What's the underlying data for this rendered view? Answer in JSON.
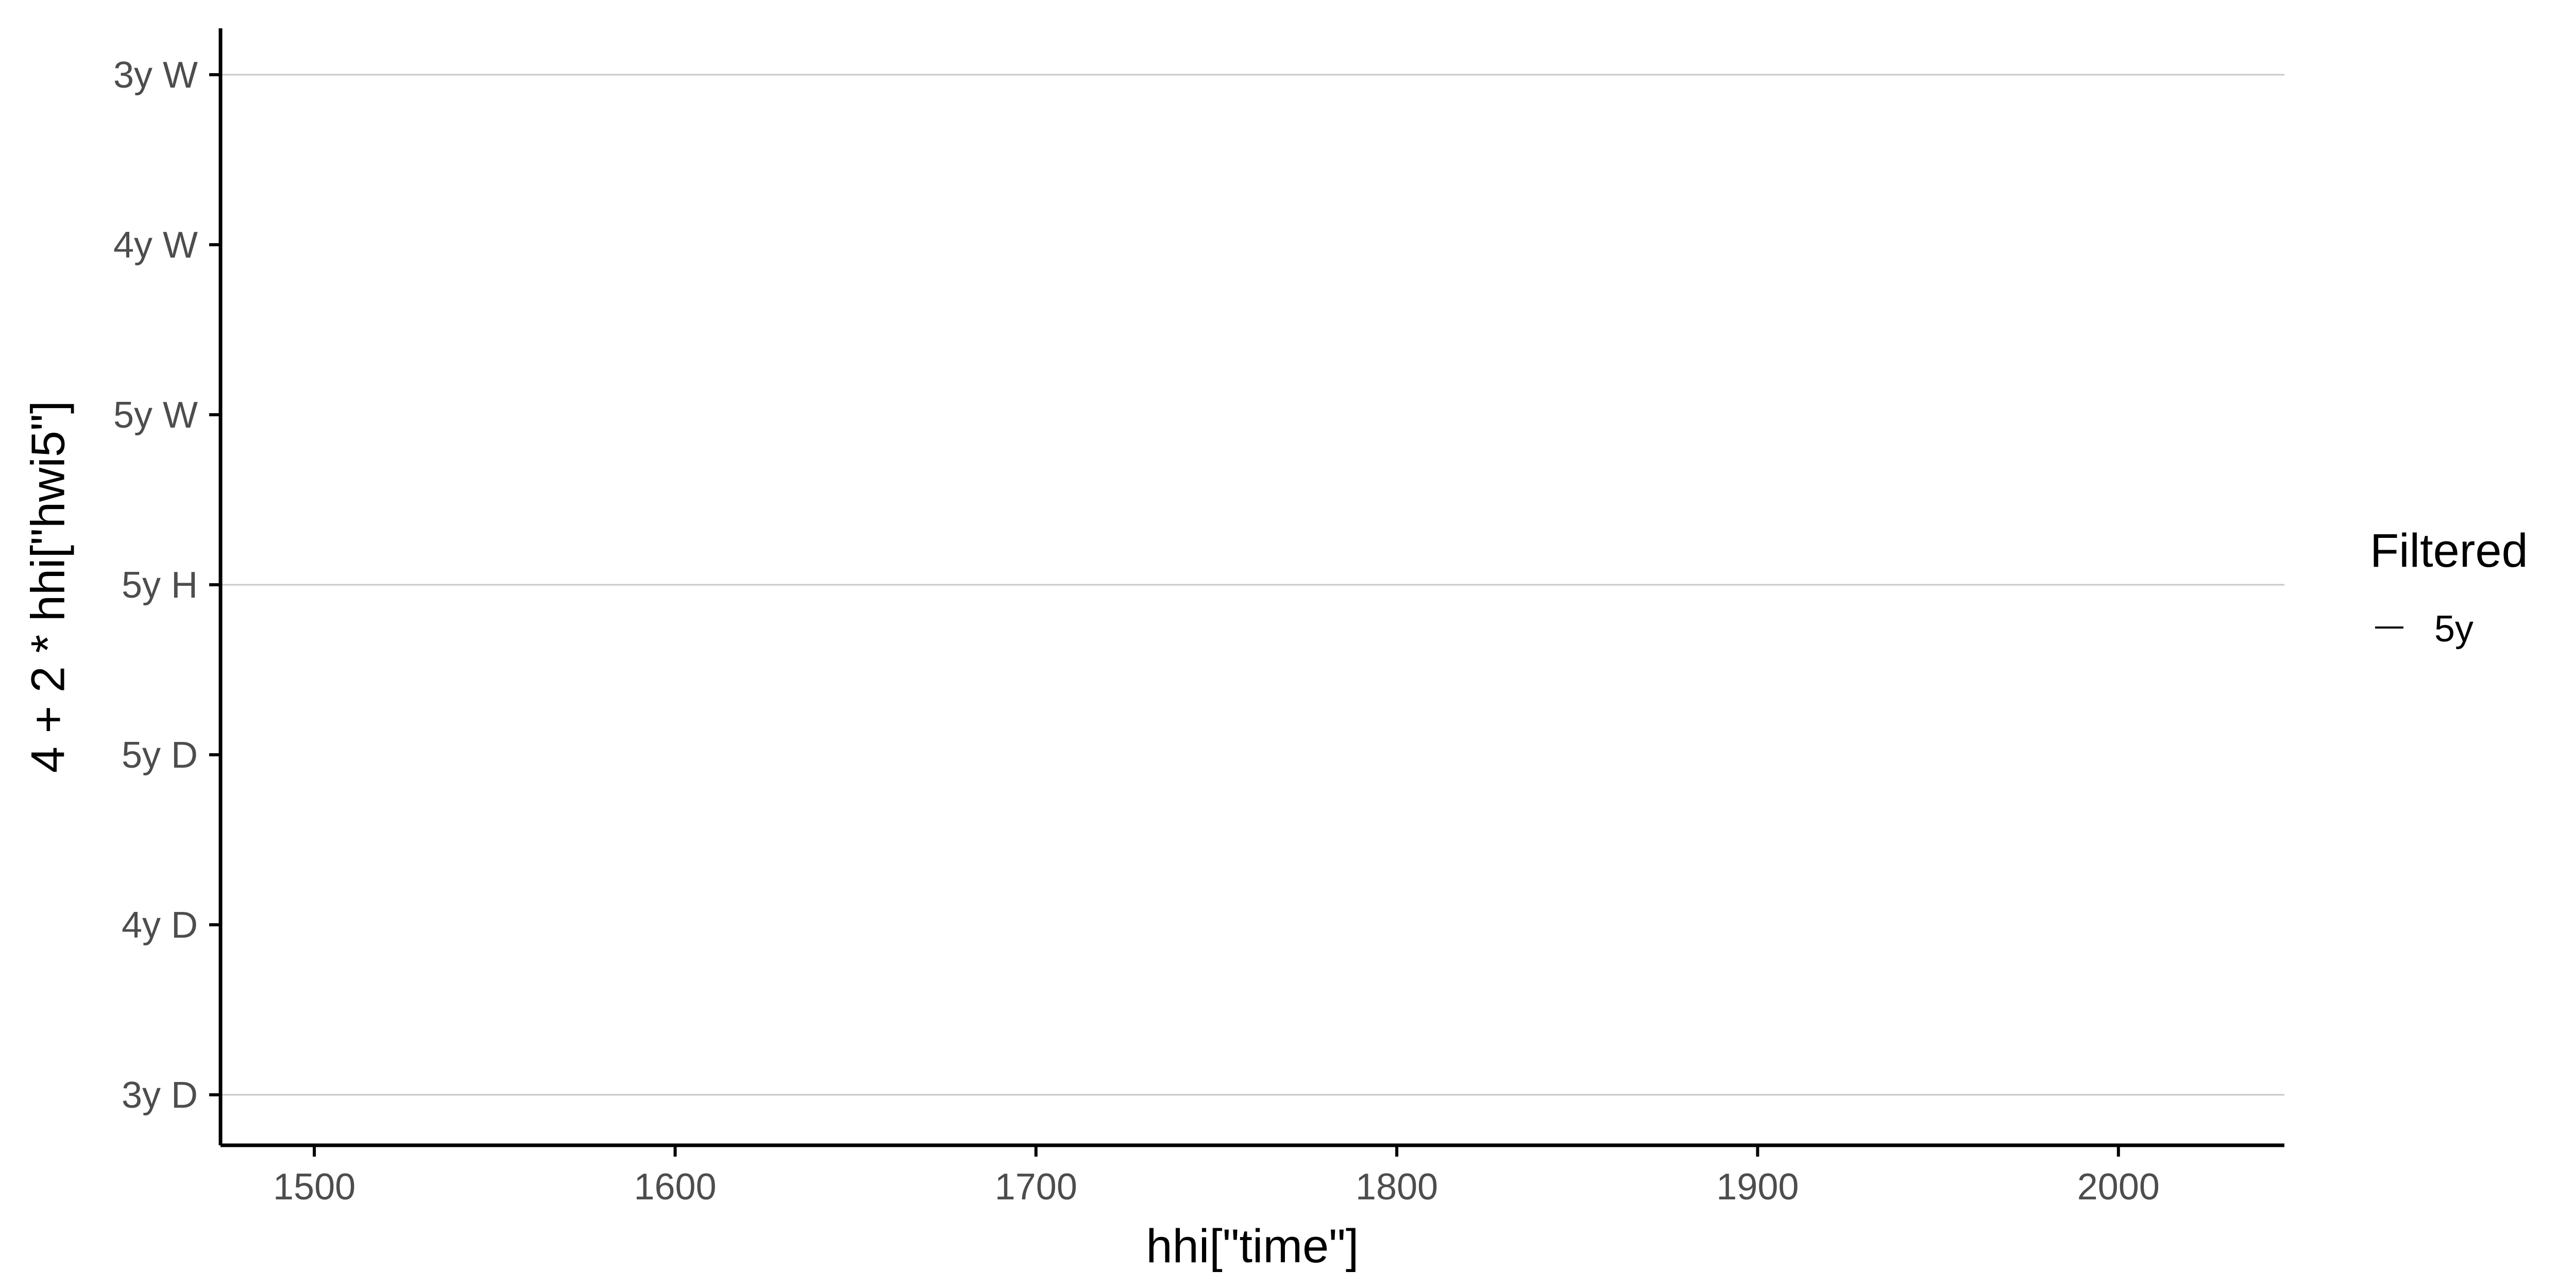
{
  "chart_data": {
    "type": "line",
    "title": "",
    "xlabel": "hhi[\"time\"]",
    "ylabel": "4 + 2 * hhi[\"hwi5\"]",
    "xlim": [
      1474,
      2046
    ],
    "x_ticks": [
      1500,
      1600,
      1700,
      1800,
      1900,
      2000
    ],
    "y_categories": [
      "3y D",
      "4y D",
      "5y D",
      "5y H",
      "5y W",
      "4y W",
      "3y W"
    ],
    "gridlines_at": [
      "3y D",
      "5y H",
      "3y W"
    ],
    "grid": true,
    "legend": {
      "title": "Filtered",
      "position": "right",
      "entries": [
        {
          "label": "5y",
          "color": "#000000"
        }
      ]
    },
    "series": [
      {
        "name": "5y",
        "x": [],
        "y": []
      }
    ],
    "colors": {
      "axis": "#000000",
      "grid": "#c8c8c8",
      "tick_text": "#4d4d4d"
    }
  }
}
